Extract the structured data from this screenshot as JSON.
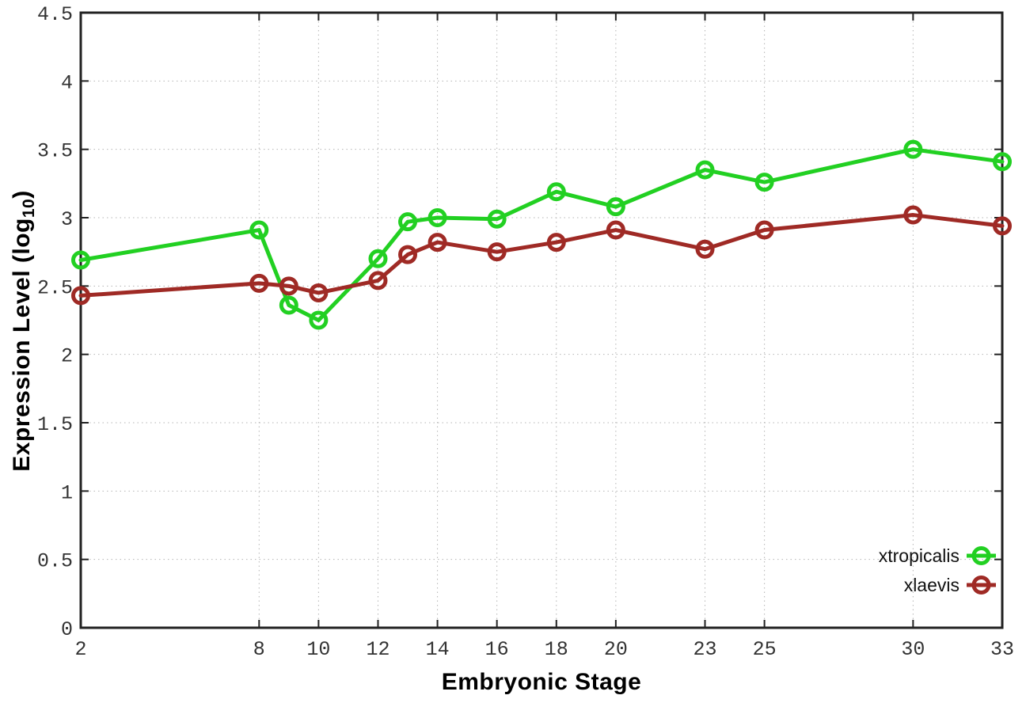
{
  "chart_data": {
    "type": "line",
    "title": "",
    "xlabel": "Embryonic Stage",
    "ylabel": "Expression Level (log10)",
    "ylabel_parts": {
      "main": "Expression Level (log",
      "sub": "10",
      "end": ")"
    },
    "xlim": [
      2,
      33
    ],
    "ylim": [
      0,
      4.5
    ],
    "x_ticks": [
      2,
      8,
      10,
      12,
      14,
      16,
      18,
      20,
      23,
      25,
      30,
      33
    ],
    "y_ticks": [
      0,
      0.5,
      1,
      1.5,
      2,
      2.5,
      3,
      3.5,
      4,
      4.5
    ],
    "grid": true,
    "legend_position": "bottom-right",
    "x": [
      2,
      8,
      9,
      10,
      12,
      13,
      14,
      16,
      18,
      20,
      23,
      25,
      30,
      33
    ],
    "series": [
      {
        "name": "xtropicalis",
        "color": "#22d022",
        "values": [
          2.69,
          2.91,
          2.36,
          2.25,
          2.7,
          2.97,
          3.0,
          2.99,
          3.19,
          3.08,
          3.35,
          3.26,
          3.5,
          3.41
        ]
      },
      {
        "name": "xlaevis",
        "color": "#9f2a25",
        "values": [
          2.43,
          2.52,
          2.5,
          2.45,
          2.54,
          2.73,
          2.82,
          2.75,
          2.82,
          2.91,
          2.77,
          2.91,
          3.02,
          2.94
        ]
      }
    ],
    "colors": {
      "border": "#222222",
      "grid": "#b4b4b4",
      "tick_label": "#333333",
      "background": "#ffffff"
    }
  }
}
